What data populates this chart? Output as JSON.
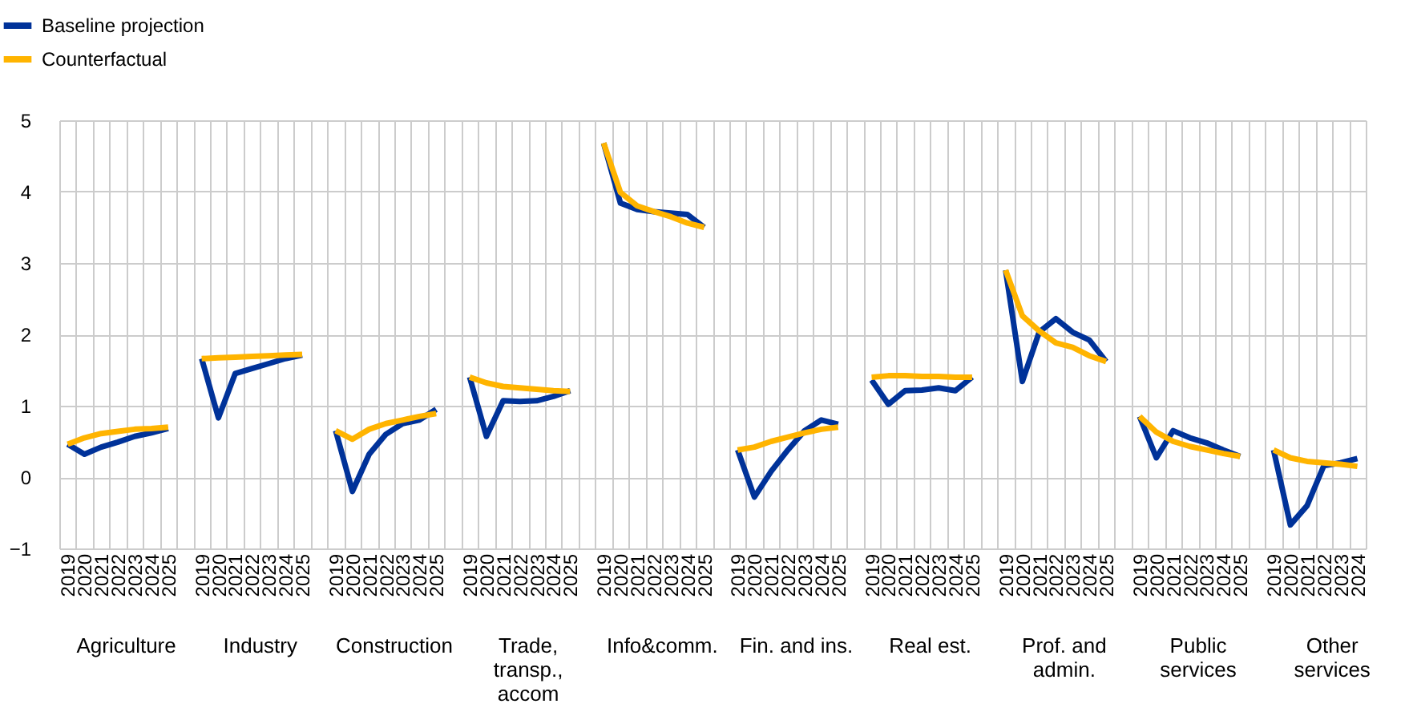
{
  "chart_data": {
    "type": "line",
    "categories": [
      "2019",
      "2020",
      "2021",
      "2022",
      "2023",
      "2024",
      "2025",
      null,
      "2019",
      "2020",
      "2021",
      "2022",
      "2023",
      "2024",
      "2025",
      null,
      "2019",
      "2020",
      "2021",
      "2022",
      "2023",
      "2024",
      "2025",
      null,
      "2019",
      "2020",
      "2021",
      "2022",
      "2023",
      "2024",
      "2025",
      null,
      "2019",
      "2020",
      "2021",
      "2022",
      "2023",
      "2024",
      "2025",
      null,
      "2019",
      "2020",
      "2021",
      "2022",
      "2023",
      "2024",
      "2025",
      null,
      "2019",
      "2020",
      "2021",
      "2022",
      "2023",
      "2024",
      "2025",
      null,
      "2019",
      "2020",
      "2021",
      "2022",
      "2023",
      "2024",
      "2025",
      null,
      "2019",
      "2020",
      "2021",
      "2022",
      "2023",
      "2024",
      "2025",
      null,
      "2019",
      "2020",
      "2021",
      "2022",
      "2023",
      "2024"
    ],
    "series": [
      {
        "name": "Baseline projection",
        "color": "#003299",
        "values": [
          0.46,
          0.32,
          0.42,
          0.49,
          0.57,
          0.62,
          0.68,
          null,
          1.66,
          0.83,
          1.45,
          1.52,
          1.59,
          1.66,
          1.71,
          null,
          0.65,
          -0.2,
          0.32,
          0.6,
          0.75,
          0.8,
          0.95,
          null,
          1.4,
          0.57,
          1.07,
          1.06,
          1.07,
          1.13,
          1.21,
          null,
          4.68,
          3.84,
          3.75,
          3.72,
          3.7,
          3.68,
          3.5,
          null,
          0.38,
          -0.28,
          0.08,
          0.38,
          0.65,
          0.8,
          0.74,
          null,
          1.36,
          1.02,
          1.21,
          1.22,
          1.25,
          1.21,
          1.4,
          null,
          2.9,
          1.34,
          2.03,
          2.22,
          2.03,
          1.92,
          1.62,
          null,
          0.85,
          0.27,
          0.65,
          0.55,
          0.48,
          0.38,
          0.29,
          null,
          0.38,
          -0.67,
          -0.4,
          0.16,
          0.2,
          0.26
        ]
      },
      {
        "name": "Counterfactual",
        "color": "#ffb400",
        "values": [
          0.46,
          0.55,
          0.61,
          0.64,
          0.67,
          0.68,
          0.7,
          null,
          1.66,
          1.67,
          1.68,
          1.69,
          1.7,
          1.71,
          1.72,
          null,
          0.65,
          0.53,
          0.67,
          0.75,
          0.8,
          0.85,
          0.89,
          null,
          1.4,
          1.32,
          1.27,
          1.25,
          1.23,
          1.21,
          1.2,
          null,
          4.68,
          3.99,
          3.8,
          3.72,
          3.65,
          3.56,
          3.5,
          null,
          0.38,
          0.42,
          0.5,
          0.56,
          0.62,
          0.67,
          0.7,
          null,
          1.4,
          1.42,
          1.42,
          1.41,
          1.41,
          1.4,
          1.4,
          null,
          2.9,
          2.26,
          2.05,
          1.88,
          1.82,
          1.7,
          1.62,
          null,
          0.85,
          0.63,
          0.5,
          0.43,
          0.38,
          0.33,
          0.29,
          null,
          0.38,
          0.27,
          0.22,
          0.2,
          0.18,
          0.15
        ]
      }
    ],
    "annotations": [
      "Agriculture",
      "Industry",
      "Construction",
      "Trade, transp., accom",
      "Info&comm.",
      "Fin. and ins.",
      "Real est.",
      "Prof. and admin.",
      "Public services",
      "Other services"
    ],
    "ylim": [
      -1,
      5
    ],
    "yticks": [
      -1,
      0,
      1,
      2,
      3,
      4,
      5
    ],
    "grid": true,
    "legend": "top left",
    "line_style": "solid",
    "marker": "none"
  }
}
